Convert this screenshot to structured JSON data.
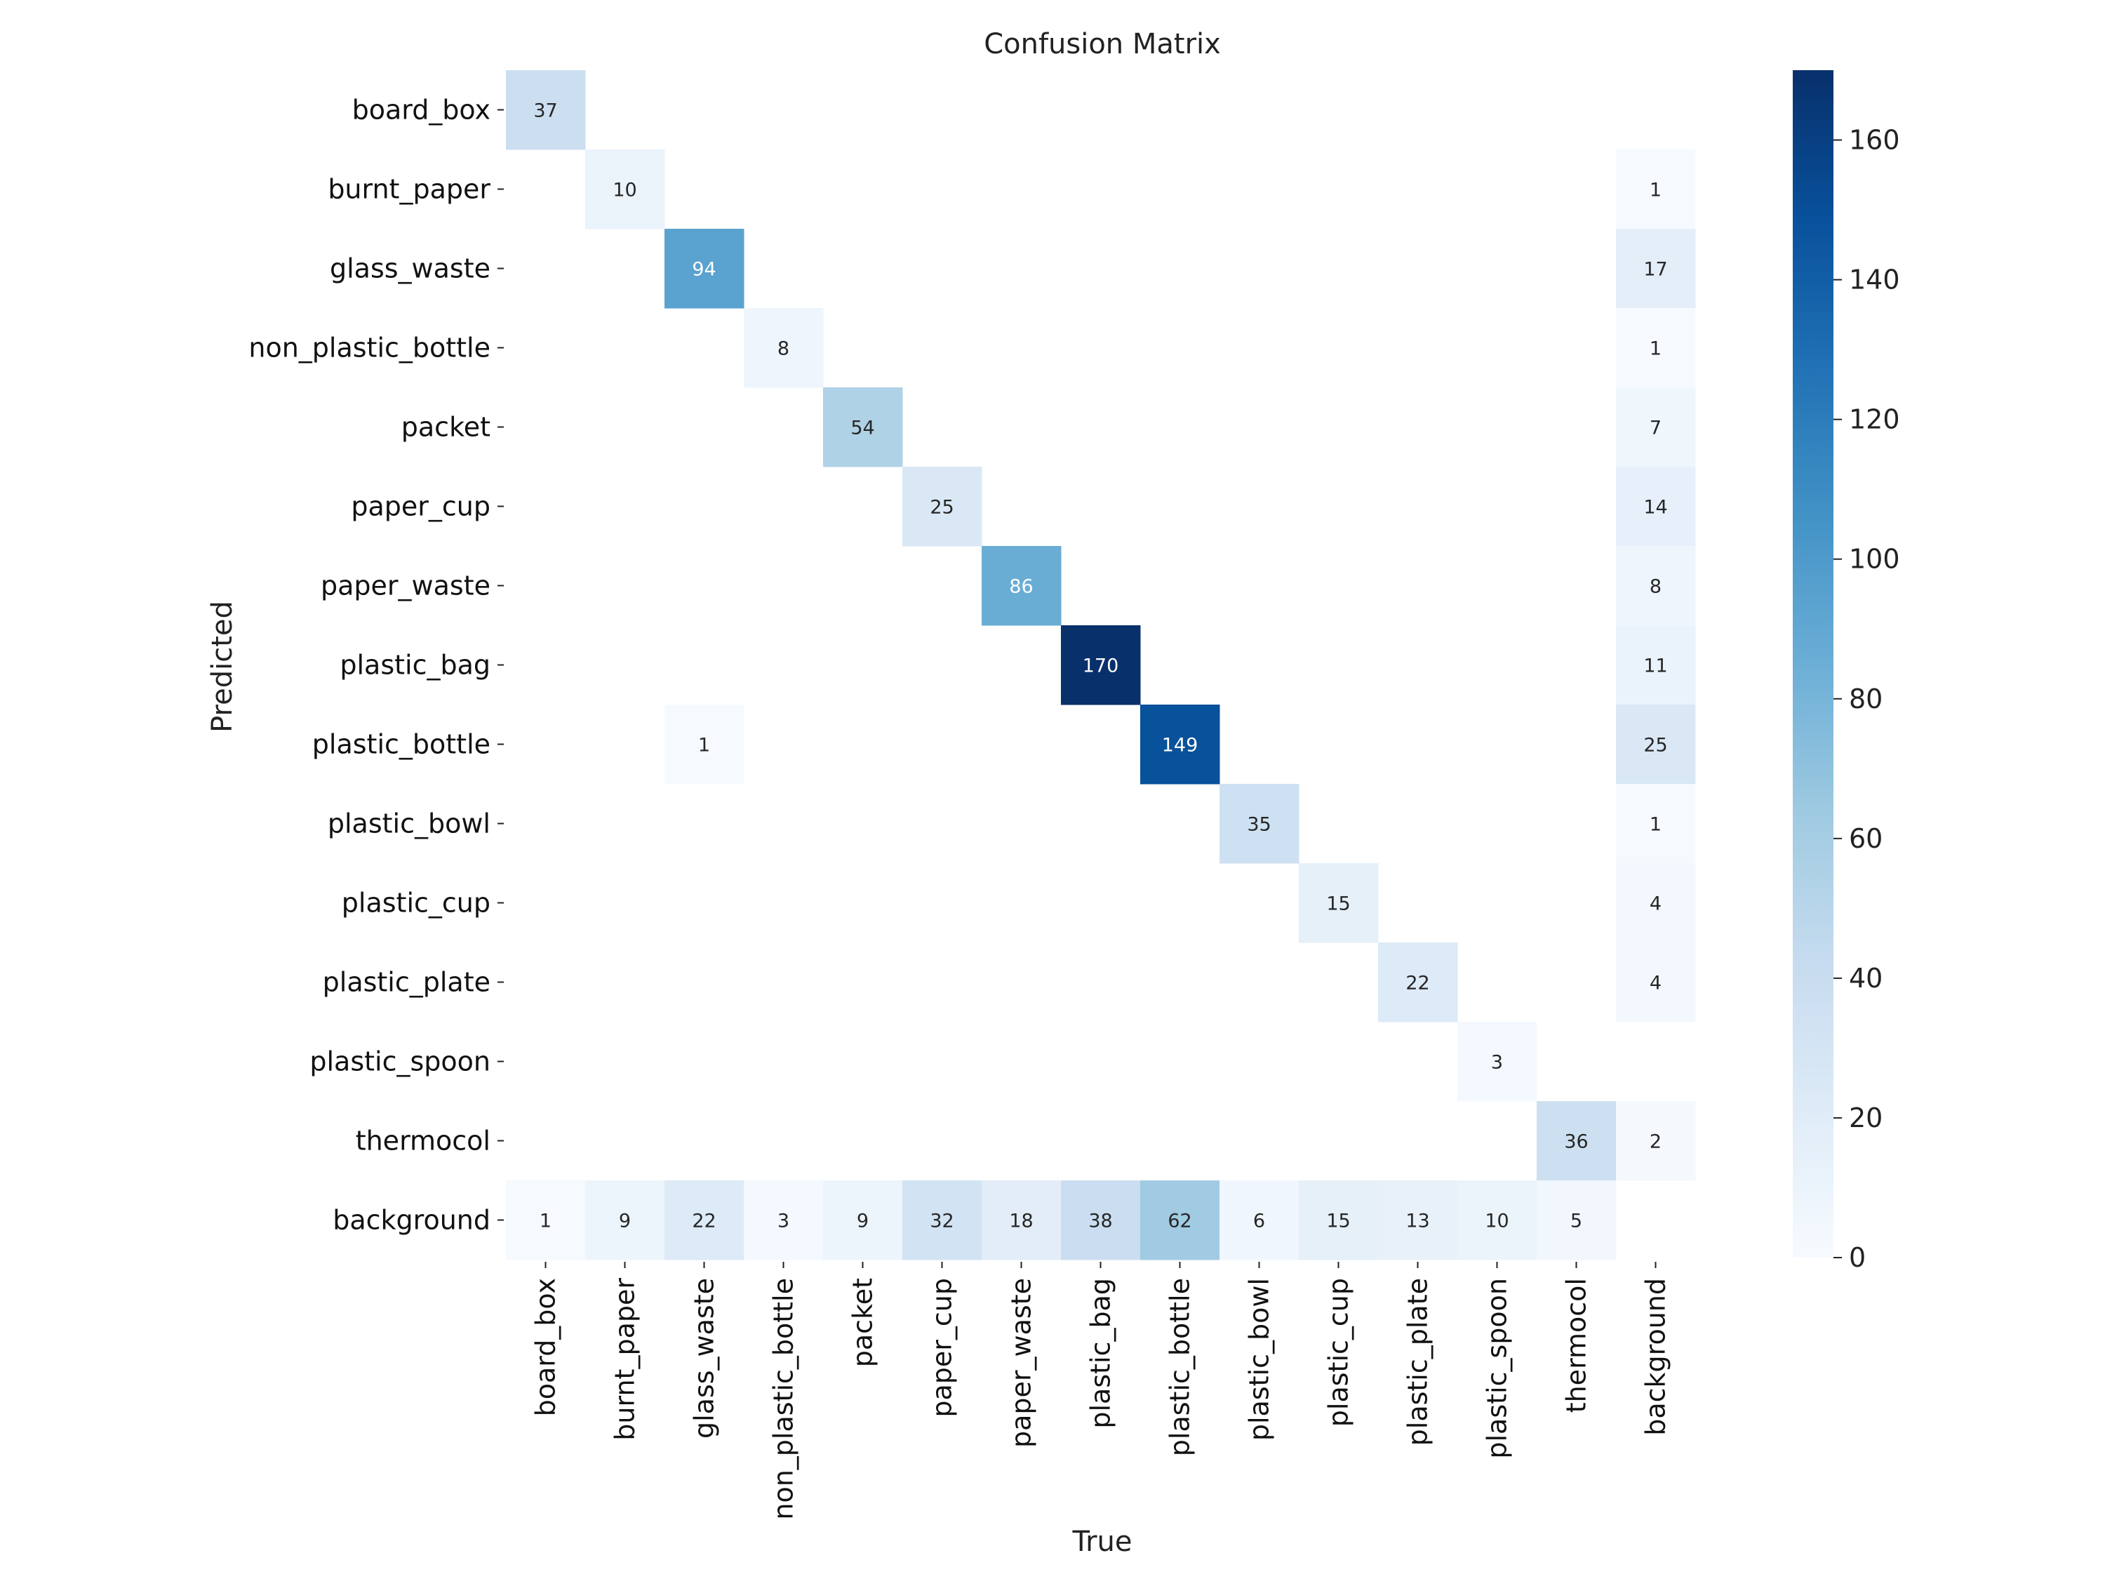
{
  "chart_data": {
    "type": "heatmap",
    "title": "Confusion Matrix",
    "xlabel": "True",
    "ylabel": "Predicted",
    "x_categories": [
      "board_box",
      "burnt_paper",
      "glass_waste",
      "non_plastic_bottle",
      "packet",
      "paper_cup",
      "paper_waste",
      "plastic_bag",
      "plastic_bottle",
      "plastic_bowl",
      "plastic_cup",
      "plastic_plate",
      "plastic_spoon",
      "thermocol",
      "background"
    ],
    "y_categories": [
      "board_box",
      "burnt_paper",
      "glass_waste",
      "non_plastic_bottle",
      "packet",
      "paper_cup",
      "paper_waste",
      "plastic_bag",
      "plastic_bottle",
      "plastic_bowl",
      "plastic_cup",
      "plastic_plate",
      "plastic_spoon",
      "thermocol",
      "background"
    ],
    "matrix": [
      [
        37,
        null,
        null,
        null,
        null,
        null,
        null,
        null,
        null,
        null,
        null,
        null,
        null,
        null,
        null
      ],
      [
        null,
        10,
        null,
        null,
        null,
        null,
        null,
        null,
        null,
        null,
        null,
        null,
        null,
        null,
        1
      ],
      [
        null,
        null,
        94,
        null,
        null,
        null,
        null,
        null,
        null,
        null,
        null,
        null,
        null,
        null,
        17
      ],
      [
        null,
        null,
        null,
        8,
        null,
        null,
        null,
        null,
        null,
        null,
        null,
        null,
        null,
        null,
        1
      ],
      [
        null,
        null,
        null,
        null,
        54,
        null,
        null,
        null,
        null,
        null,
        null,
        null,
        null,
        null,
        7
      ],
      [
        null,
        null,
        null,
        null,
        null,
        25,
        null,
        null,
        null,
        null,
        null,
        null,
        null,
        null,
        14
      ],
      [
        null,
        null,
        null,
        null,
        null,
        null,
        86,
        null,
        null,
        null,
        null,
        null,
        null,
        null,
        8
      ],
      [
        null,
        null,
        null,
        null,
        null,
        null,
        null,
        170,
        null,
        null,
        null,
        null,
        null,
        null,
        11
      ],
      [
        null,
        null,
        1,
        null,
        null,
        null,
        null,
        null,
        149,
        null,
        null,
        null,
        null,
        null,
        25
      ],
      [
        null,
        null,
        null,
        null,
        null,
        null,
        null,
        null,
        null,
        35,
        null,
        null,
        null,
        null,
        1
      ],
      [
        null,
        null,
        null,
        null,
        null,
        null,
        null,
        null,
        null,
        null,
        15,
        null,
        null,
        null,
        4
      ],
      [
        null,
        null,
        null,
        null,
        null,
        null,
        null,
        null,
        null,
        null,
        null,
        22,
        null,
        null,
        4
      ],
      [
        null,
        null,
        null,
        null,
        null,
        null,
        null,
        null,
        null,
        null,
        null,
        null,
        3,
        null,
        null
      ],
      [
        null,
        null,
        null,
        null,
        null,
        null,
        null,
        null,
        null,
        null,
        null,
        null,
        null,
        36,
        2
      ],
      [
        1,
        9,
        22,
        3,
        9,
        32,
        18,
        38,
        62,
        6,
        15,
        13,
        10,
        5,
        null
      ]
    ],
    "colorbar": {
      "min": 0,
      "max": 170,
      "ticks": [
        0,
        20,
        40,
        60,
        80,
        100,
        120,
        140,
        160
      ]
    },
    "colormap": "Blues",
    "color_low": "#f7fbff",
    "color_high": "#08306b",
    "grid": false
  }
}
